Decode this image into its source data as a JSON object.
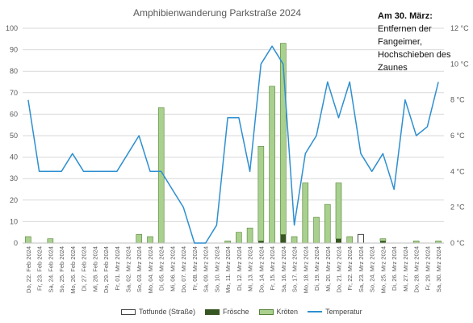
{
  "chart_data": {
    "type": "bar",
    "title": "Amphibienwanderung Parkstraße 2024",
    "categories": [
      "Do, 22. Feb 2024",
      "Fr, 23. Feb 2024",
      "Sa, 24. Feb 2024",
      "So, 25. Feb 2024",
      "Mo, 26. Feb 2024",
      "Di, 27. Feb 2024",
      "Mi, 28. Feb 2024",
      "Do, 29. Feb 2024",
      "Fr, 01. Mrz 2024",
      "Sa, 02. Mrz 2024",
      "So, 03. Mrz 2024",
      "Mo, 04. Mrz 2024",
      "Di, 05. Mrz 2024",
      "Mi, 06. Mrz 2024",
      "Do, 07. Mrz 2024",
      "Fr, 08. Mrz 2024",
      "Sa, 09. Mrz 2024",
      "So, 10. Mrz 2024",
      "Mo, 11. Mrz 2024",
      "Di, 12. Mrz 2024",
      "Mi, 13. Mrz 2024",
      "Do, 14. Mrz 2024",
      "Fr, 15. Mrz 2024",
      "Sa, 16. Mrz 2024",
      "So, 17. Mrz 2024",
      "Mo, 18. Mrz 2024",
      "Di, 19. Mrz 2024",
      "Mi, 20. Mrz 2024",
      "Do, 21. Mrz 2024",
      "Fr, 22. Mrz 2024",
      "Sa, 23. Mrz 2024",
      "So, 24. Mrz 2024",
      "Mo, 25. Mrz 2024",
      "Di, 26. Mrz 2024",
      "Mi, 27. Mrz 2024",
      "Do, 28. Mrz 2024",
      "Fr, 29. Mrz 2024",
      "Sa, 30. Mrz 2024"
    ],
    "series": [
      {
        "name": "Totfunde (Straße)",
        "kind": "bar",
        "axis": "left",
        "values": [
          0,
          0,
          0,
          0,
          0,
          0,
          0,
          0,
          0,
          0,
          0,
          0,
          0,
          0,
          0,
          0,
          0,
          0,
          0,
          0,
          0,
          0,
          0,
          0,
          0,
          0,
          0,
          0,
          0,
          0,
          4,
          0,
          0,
          0,
          0,
          0,
          0,
          0
        ]
      },
      {
        "name": "Frösche",
        "kind": "bar",
        "axis": "left",
        "values": [
          0,
          0,
          0,
          0,
          0,
          0,
          0,
          0,
          0,
          0,
          0,
          0,
          0,
          0,
          0,
          0,
          0,
          0,
          0,
          0,
          0,
          1,
          0,
          4,
          0,
          0,
          0,
          0,
          2,
          0,
          0,
          0,
          1,
          0,
          0,
          0,
          0,
          0
        ]
      },
      {
        "name": "Kröten",
        "kind": "bar",
        "axis": "left",
        "values": [
          3,
          0,
          2,
          0,
          0,
          0,
          0,
          0,
          0,
          0,
          4,
          3,
          63,
          0,
          0,
          0,
          0,
          0,
          1,
          5,
          7,
          44,
          73,
          89,
          3,
          28,
          12,
          18,
          26,
          3,
          3,
          0,
          1,
          0,
          0,
          1,
          0,
          1
        ]
      },
      {
        "name": "Temperatur",
        "kind": "line",
        "axis": "right",
        "values": [
          8,
          4,
          4,
          4,
          5,
          4,
          4,
          4,
          4,
          5,
          6,
          4,
          4,
          3,
          2,
          0,
          0,
          1,
          7,
          7,
          4,
          10,
          11,
          10,
          1,
          5,
          6,
          9,
          7,
          9,
          5,
          4,
          5,
          3,
          8,
          6,
          6.5,
          9
        ]
      }
    ],
    "ylim": [
      0,
      100
    ],
    "yticks": [
      0,
      10,
      20,
      30,
      40,
      50,
      60,
      70,
      80,
      90,
      100
    ],
    "y2lim": [
      0,
      12
    ],
    "y2ticks": [
      "0 °C",
      "2 °C",
      "4 °C",
      "6 °C",
      "8 °C",
      "10 °C",
      "12 °C"
    ],
    "grid": true,
    "legend_position": "bottom",
    "colors": {
      "Totfunde (Straße)": "#ffffff",
      "Totfunde_border": "#444444",
      "Frösche": "#375623",
      "Kröten": "#a9d08e",
      "Kröten_border": "#548235",
      "Temperatur": "#2e8fd0",
      "grid": "#d9d9d9",
      "axis_text": "#595959"
    }
  },
  "annotation": {
    "heading": "Am 30. März:",
    "body": "Entfernen der Fangeimer, Hochschieben des Zaunes"
  }
}
